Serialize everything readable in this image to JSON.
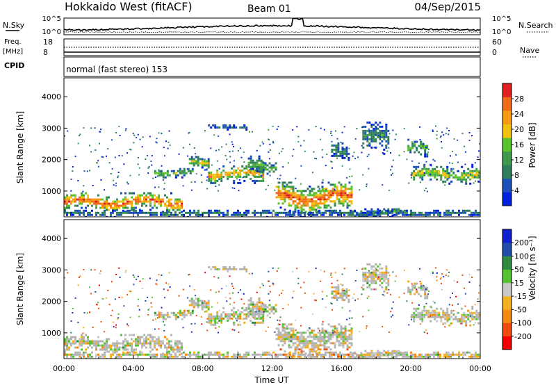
{
  "header": {
    "station": "Hokkaido West (fitACF)",
    "beam": "Beam 01",
    "date": "04/Sep/2015"
  },
  "noise_panel": {
    "left_label": "N.Sky",
    "right_label": "N.Search",
    "ticks_left": [
      "10^5",
      "10^0"
    ],
    "ticks_right": [
      "10^5",
      "10^0"
    ]
  },
  "freq_panel": {
    "left_label_1": "Freq.",
    "left_label_2": "[MHz]",
    "left_ticks": [
      "18",
      "8"
    ],
    "right_label": "Nave",
    "right_ticks": [
      "60",
      "0"
    ],
    "cpid_label": "CPID",
    "cpid_text": "normal (fast stereo) 153"
  },
  "colors": {
    "power_scale": [
      "#0022dd",
      "#1c4fb8",
      "#2e7d5a",
      "#3c9a4a",
      "#58c22a",
      "#f0c010",
      "#f39a10",
      "#ef6b1a",
      "#e02020"
    ],
    "velocity_scale": [
      "#f00000",
      "#f04a10",
      "#f28a10",
      "#f2b020",
      "#c8c8c8",
      "#56c232",
      "#2e8a3e",
      "#1e4ea8",
      "#1020cc"
    ],
    "ground_scatter": "#b4b4b4"
  },
  "chart_data": [
    {
      "type": "heatmap",
      "name": "power",
      "ylabel": "Slant Range [km]",
      "ylim": [
        180,
        4600
      ],
      "yticks": [
        "1000",
        "2000",
        "3000",
        "4000"
      ],
      "xlim": [
        0,
        24
      ],
      "colorbar": {
        "label": "Power [dB]",
        "ticks": [
          "4",
          "8",
          "12",
          "16",
          "20",
          "24",
          "28"
        ],
        "range": [
          0,
          30
        ]
      },
      "echo_bands": [
        {
          "t_start": 0.0,
          "t_end": 6.8,
          "range_center": 620,
          "range_width": 320,
          "peak_db": 26
        },
        {
          "t_start": 5.2,
          "t_end": 7.4,
          "range_center": 1550,
          "range_width": 150,
          "peak_db": 14
        },
        {
          "t_start": 7.2,
          "t_end": 8.3,
          "range_center": 1850,
          "range_width": 200,
          "peak_db": 18
        },
        {
          "t_start": 8.3,
          "t_end": 11.5,
          "range_center": 1500,
          "range_width": 280,
          "peak_db": 22
        },
        {
          "t_start": 10.6,
          "t_end": 11.6,
          "range_center": 1850,
          "range_width": 250,
          "peak_db": 14
        },
        {
          "t_start": 11.2,
          "t_end": 12.2,
          "range_center": 1700,
          "range_width": 250,
          "peak_db": 12
        },
        {
          "t_start": 12.2,
          "t_end": 16.6,
          "range_center": 760,
          "range_width": 520,
          "peak_db": 26
        },
        {
          "t_start": 16.6,
          "t_end": 19.6,
          "range_center": 280,
          "range_width": 160,
          "peak_db": 10
        },
        {
          "t_start": 15.4,
          "t_end": 16.4,
          "range_center": 2250,
          "range_width": 300,
          "peak_db": 10
        },
        {
          "t_start": 17.2,
          "t_end": 18.7,
          "range_center": 2650,
          "range_width": 500,
          "peak_db": 10
        },
        {
          "t_start": 20.0,
          "t_end": 24.0,
          "range_center": 1500,
          "range_width": 300,
          "peak_db": 18
        },
        {
          "t_start": 19.8,
          "t_end": 21.0,
          "range_center": 2300,
          "range_width": 300,
          "peak_db": 14
        },
        {
          "t_start": 8.3,
          "t_end": 10.5,
          "range_center": 3000,
          "range_width": 80,
          "peak_db": 6
        },
        {
          "t_start": 0.0,
          "t_end": 24.0,
          "range_center": 260,
          "range_width": 120,
          "peak_db": 8
        }
      ]
    },
    {
      "type": "heatmap",
      "name": "velocity",
      "ylabel": "Slant Range [km]",
      "ylim": [
        180,
        4600
      ],
      "yticks": [
        "1000",
        "2000",
        "3000",
        "4000"
      ],
      "xlabel": "Time UT",
      "xticks": [
        "00:00",
        "04:00",
        "08:00",
        "12:00",
        "16:00",
        "20:00",
        "00:00"
      ],
      "xlim": [
        0,
        24
      ],
      "colorbar": {
        "label": "Velocity [m s⁻¹]",
        "ticks": [
          "-200",
          "-100",
          "-50",
          "-15",
          "15",
          "50",
          "100",
          "200"
        ],
        "range": [
          -250,
          250
        ]
      }
    }
  ]
}
